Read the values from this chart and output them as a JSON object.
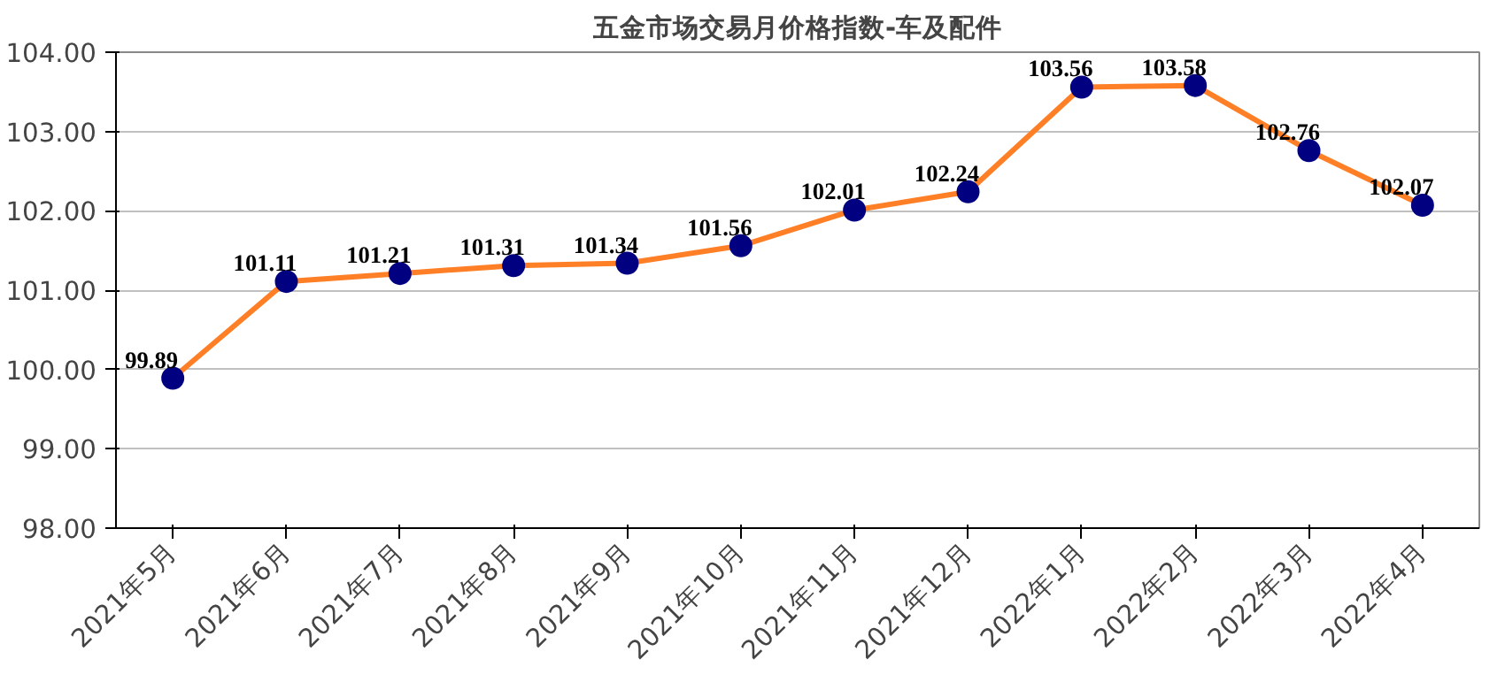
{
  "chart_data": {
    "type": "line",
    "title": "五金市场交易月价格指数-车及配件",
    "categories": [
      "2021年5月",
      "2021年6月",
      "2021年7月",
      "2021年8月",
      "2021年9月",
      "2021年10月",
      "2021年11月",
      "2021年12月",
      "2022年1月",
      "2022年2月",
      "2022年3月",
      "2022年4月"
    ],
    "series": [
      {
        "color": "#ff7f27",
        "values": [
          99.89,
          101.11,
          101.21,
          101.31,
          101.34,
          101.56,
          102.01,
          102.24,
          103.56,
          103.58,
          102.76,
          102.07
        ]
      }
    ],
    "ylim": [
      98,
      104
    ],
    "yticks": [
      {
        "value": 98,
        "label": "98.00"
      },
      {
        "value": 99,
        "label": "99.00"
      },
      {
        "value": 100,
        "label": "100.00"
      },
      {
        "value": 101,
        "label": "101.00"
      },
      {
        "value": 102,
        "label": "102.00"
      },
      {
        "value": 103,
        "label": "103.00"
      },
      {
        "value": 104,
        "label": "104.00"
      }
    ],
    "grid": "y",
    "marker": "circle",
    "line_style": "solid",
    "data_labels": true
  }
}
